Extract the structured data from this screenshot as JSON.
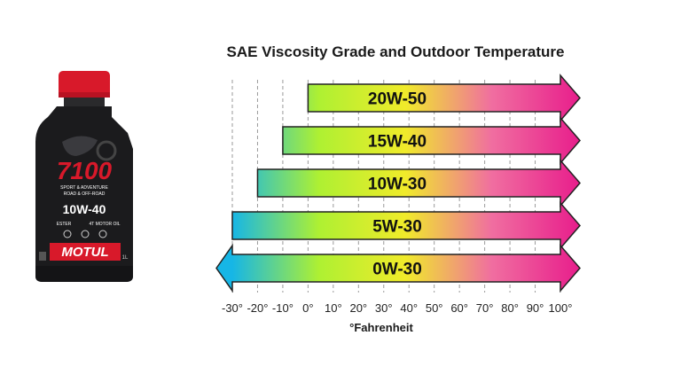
{
  "product": {
    "model": "7100",
    "grade": "10W-40",
    "line1": "SPORT & ADVENTURE",
    "line2": "ROAD & OFF-ROAD",
    "type": "ESTER",
    "engine": "4T MOTOR OIL",
    "brand": "MOTUL",
    "volume": "1L",
    "colors": {
      "cap": "#d8192a",
      "body": "#1b1b1d",
      "brand_bg": "#d8192a"
    }
  },
  "chart_data": {
    "type": "bar",
    "title": "SAE Viscosity Grade and Outdoor Temperature",
    "xlabel": "°Fahrenheit",
    "xlim": [
      -30,
      100
    ],
    "ticks": [
      -30,
      -20,
      -10,
      0,
      10,
      20,
      30,
      40,
      50,
      60,
      70,
      80,
      90,
      100
    ],
    "tick_labels": [
      "-30°",
      "-20°",
      "-10°",
      "0°",
      "10°",
      "20°",
      "30°",
      "40°",
      "50°",
      "60°",
      "70°",
      "80°",
      "90°",
      "100°"
    ],
    "grid": true,
    "series": [
      {
        "name": "20W-50",
        "start": 0,
        "end": 100,
        "left_arrow": false
      },
      {
        "name": "15W-40",
        "start": -10,
        "end": 100,
        "left_arrow": false
      },
      {
        "name": "10W-30",
        "start": -20,
        "end": 100,
        "left_arrow": false
      },
      {
        "name": "5W-30",
        "start": -30,
        "end": 100,
        "left_arrow": false
      },
      {
        "name": "0W-30",
        "start": -30,
        "end": 100,
        "left_arrow": true
      }
    ],
    "gradient_colors": [
      "#16b6e6",
      "#aef032",
      "#f0eb2a",
      "#f06ea0",
      "#e81f8c"
    ]
  }
}
